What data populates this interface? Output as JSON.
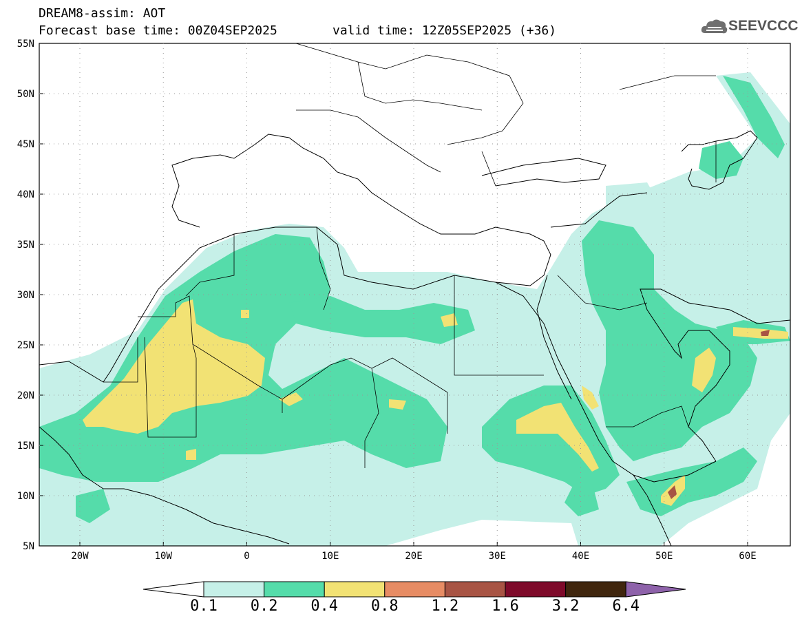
{
  "header": {
    "title_line1": "DREAM8-assim: AOT",
    "title_line2_left": "Forecast base time: 00Z04SEP2025",
    "title_line2_right": "valid time: 12Z05SEP2025 (+36)"
  },
  "logo": {
    "text": "SEEVCCC",
    "icon": "cloud-logo-icon"
  },
  "map": {
    "lat_labels": [
      "55N",
      "50N",
      "45N",
      "40N",
      "35N",
      "30N",
      "25N",
      "20N",
      "15N",
      "10N",
      "5N"
    ],
    "lon_labels": [
      "20W",
      "10W",
      "0",
      "10E",
      "20E",
      "30E",
      "40E",
      "50E",
      "60E"
    ]
  },
  "colorbar": {
    "labels": [
      "0.1",
      "0.2",
      "0.4",
      "0.8",
      "1.2",
      "1.6",
      "3.2",
      "6.4"
    ],
    "colors": [
      "#ffffff",
      "#c6f0e8",
      "#55dcaa",
      "#f2e274",
      "#e78c64",
      "#a85444",
      "#7e0a2a",
      "#40260e",
      "#8e62aa"
    ]
  }
}
